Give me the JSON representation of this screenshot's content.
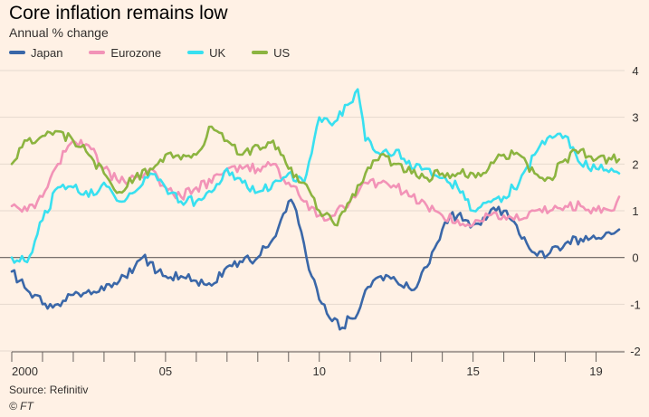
{
  "chart_data": {
    "type": "line",
    "title": "Core inflation remains low",
    "subtitle": "Annual % change",
    "xlabel": "",
    "ylabel": "",
    "xlim": [
      2000,
      2019.75
    ],
    "ylim": [
      -2,
      4
    ],
    "yticks": [
      4,
      3,
      2,
      1,
      0,
      -1,
      -2
    ],
    "xtick_labels": [
      {
        "year": 2000,
        "label": "2000"
      },
      {
        "year": 2005,
        "label": "05"
      },
      {
        "year": 2010,
        "label": "10"
      },
      {
        "year": 2015,
        "label": "15"
      },
      {
        "year": 2019,
        "label": "19"
      }
    ],
    "legend_position": "top-left",
    "series": [
      {
        "name": "Japan",
        "color": "#3a67a8",
        "x": [
          2000,
          2000.25,
          2000.5,
          2000.75,
          2001,
          2001.5,
          2002,
          2002.5,
          2003,
          2003.5,
          2004,
          2004.25,
          2004.5,
          2004.75,
          2005,
          2005.5,
          2006,
          2006.5,
          2007,
          2007.5,
          2008,
          2008.5,
          2008.75,
          2009,
          2009.25,
          2009.5,
          2009.75,
          2010,
          2010.25,
          2010.5,
          2010.75,
          2011,
          2011.25,
          2011.5,
          2011.75,
          2012,
          2012.5,
          2013,
          2013.25,
          2013.5,
          2013.75,
          2014,
          2014.25,
          2014.5,
          2014.75,
          2015,
          2015.25,
          2015.5,
          2015.75,
          2016,
          2016.25,
          2016.5,
          2016.75,
          2017,
          2017.5,
          2018,
          2018.5,
          2019,
          2019.5,
          2019.75
        ],
        "values": [
          -0.3,
          -0.5,
          -0.7,
          -0.8,
          -1.0,
          -1.0,
          -0.8,
          -0.7,
          -0.7,
          -0.5,
          -0.2,
          0.0,
          -0.1,
          -0.3,
          -0.4,
          -0.4,
          -0.5,
          -0.6,
          -0.2,
          -0.1,
          0.0,
          0.4,
          0.8,
          1.2,
          1.0,
          0.3,
          -0.4,
          -0.9,
          -1.2,
          -1.3,
          -1.5,
          -1.3,
          -1.2,
          -0.7,
          -0.5,
          -0.4,
          -0.5,
          -0.7,
          -0.5,
          -0.2,
          0.2,
          0.6,
          0.9,
          0.9,
          0.8,
          0.7,
          0.7,
          0.9,
          1.0,
          1.0,
          0.8,
          0.5,
          0.3,
          0.1,
          0.1,
          0.3,
          0.4,
          0.4,
          0.5,
          0.6
        ]
      },
      {
        "name": "Eurozone",
        "color": "#f293b7",
        "x": [
          2000,
          2000.5,
          2001,
          2001.5,
          2002,
          2002.5,
          2003,
          2003.5,
          2004,
          2004.5,
          2005,
          2005.5,
          2006,
          2006.5,
          2007,
          2007.5,
          2008,
          2008.5,
          2009,
          2009.5,
          2010,
          2010.5,
          2011,
          2011.5,
          2012,
          2012.5,
          2013,
          2013.5,
          2014,
          2014.5,
          2015,
          2015.5,
          2016,
          2016.5,
          2017,
          2017.5,
          2018,
          2018.5,
          2019,
          2019.5,
          2019.75
        ],
        "values": [
          1.1,
          1.0,
          1.3,
          2.0,
          2.5,
          2.4,
          1.9,
          1.6,
          1.7,
          1.9,
          1.5,
          1.3,
          1.5,
          1.6,
          1.9,
          1.9,
          1.9,
          2.0,
          1.6,
          1.2,
          0.9,
          0.9,
          1.2,
          1.6,
          1.6,
          1.5,
          1.3,
          1.1,
          0.9,
          0.8,
          0.7,
          0.9,
          0.9,
          0.8,
          1.0,
          1.0,
          1.1,
          1.1,
          1.0,
          1.0,
          1.3
        ]
      },
      {
        "name": "UK",
        "color": "#38e0f0",
        "x": [
          2000,
          2000.5,
          2001,
          2001.5,
          2002,
          2002.5,
          2003,
          2003.5,
          2004,
          2004.5,
          2005,
          2005.5,
          2006,
          2006.5,
          2007,
          2007.5,
          2008,
          2008.5,
          2009,
          2009.5,
          2010,
          2010.5,
          2011,
          2011.25,
          2011.5,
          2012,
          2012.5,
          2013,
          2013.5,
          2014,
          2014.5,
          2015,
          2015.5,
          2016,
          2016.5,
          2017,
          2017.5,
          2018,
          2018.5,
          2019,
          2019.5,
          2019.75
        ],
        "values": [
          0.0,
          -0.1,
          0.8,
          1.5,
          1.5,
          1.3,
          1.6,
          1.2,
          1.4,
          1.8,
          1.5,
          1.2,
          1.2,
          1.4,
          1.9,
          1.6,
          1.4,
          1.6,
          1.8,
          1.6,
          3.0,
          2.9,
          3.3,
          3.6,
          2.5,
          2.2,
          2.3,
          1.9,
          1.9,
          1.7,
          1.5,
          1.0,
          1.2,
          1.3,
          1.6,
          2.2,
          2.6,
          2.6,
          2.0,
          1.9,
          1.9,
          1.8
        ]
      },
      {
        "name": "US",
        "color": "#8cb440",
        "x": [
          2000,
          2000.5,
          2001,
          2001.5,
          2002,
          2002.5,
          2003,
          2003.5,
          2004,
          2004.5,
          2005,
          2005.5,
          2006,
          2006.5,
          2007,
          2007.5,
          2008,
          2008.5,
          2009,
          2009.5,
          2010,
          2010.5,
          2011,
          2011.5,
          2012,
          2012.5,
          2013,
          2013.5,
          2014,
          2014.5,
          2015,
          2015.5,
          2016,
          2016.5,
          2017,
          2017.5,
          2018,
          2018.5,
          2019,
          2019.5,
          2019.75
        ],
        "values": [
          2.0,
          2.5,
          2.6,
          2.7,
          2.5,
          2.2,
          1.8,
          1.4,
          1.7,
          1.9,
          2.2,
          2.1,
          2.2,
          2.8,
          2.5,
          2.2,
          2.4,
          2.5,
          1.9,
          1.6,
          1.0,
          0.7,
          1.2,
          1.8,
          2.2,
          2.0,
          1.8,
          1.7,
          1.8,
          1.8,
          1.8,
          1.9,
          2.2,
          2.2,
          1.8,
          1.7,
          2.1,
          2.3,
          2.1,
          2.1,
          2.1
        ]
      }
    ]
  },
  "footer": {
    "source": "Source: Refinitiv",
    "credit": "© FT"
  }
}
